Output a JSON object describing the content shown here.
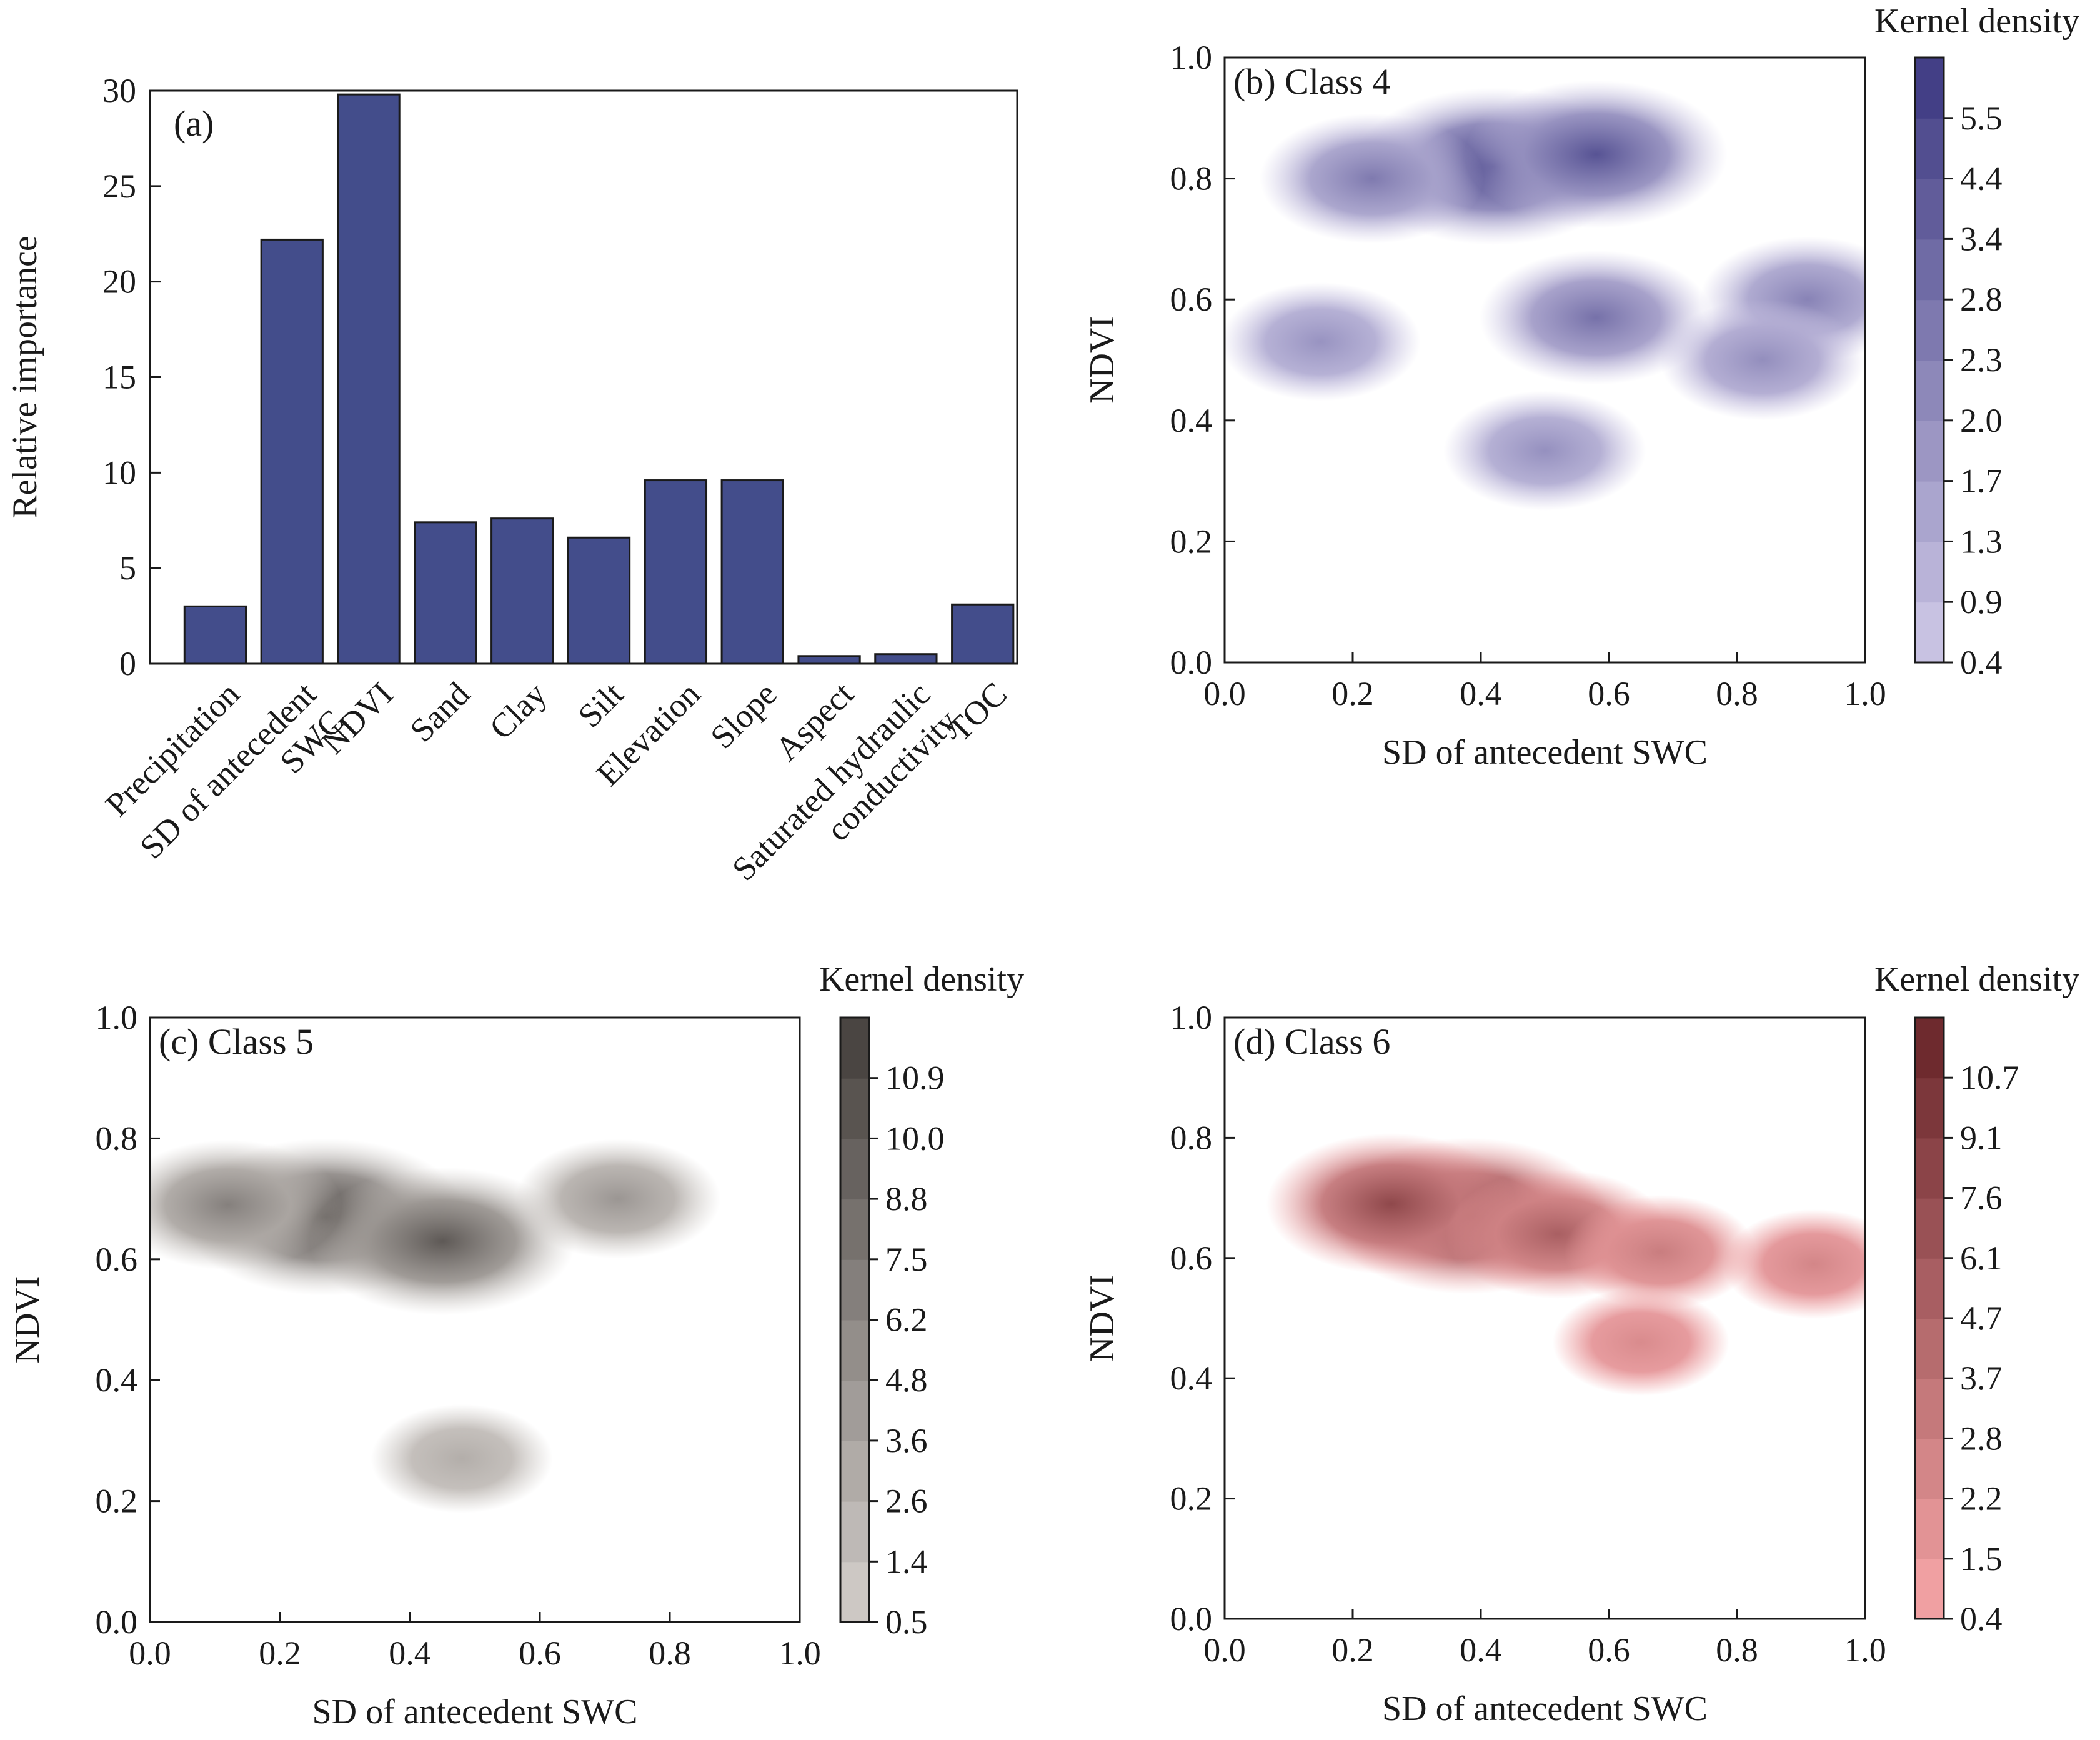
{
  "chart_data": [
    {
      "type": "bar",
      "label": "(a)",
      "ylabel": "Relative importance",
      "ylim": [
        0,
        30
      ],
      "yticks": [
        "0",
        "5",
        "10",
        "15",
        "20",
        "25",
        "30"
      ],
      "categories": [
        "Precipitation",
        "SD of antecedent SWC",
        "NDVI",
        "Sand",
        "Clay",
        "Silt",
        "Elevation",
        "Slope",
        "Aspect",
        "Saturated hydraulic conductivity",
        "TOC"
      ],
      "category_lines": [
        [
          "Precipitation"
        ],
        [
          "SD of antecedent",
          "SWC"
        ],
        [
          "NDVI"
        ],
        [
          "Sand"
        ],
        [
          "Clay"
        ],
        [
          "Silt"
        ],
        [
          "Elevation"
        ],
        [
          "Slope"
        ],
        [
          "Aspect"
        ],
        [
          "Saturated hydraulic",
          "conductivity"
        ],
        [
          "TOC"
        ]
      ],
      "values": [
        3.0,
        22.2,
        29.8,
        7.4,
        7.6,
        6.6,
        9.6,
        9.6,
        0.4,
        0.5,
        3.1
      ],
      "bar_color": "#434d8b"
    },
    {
      "type": "heatmap",
      "label": "(b) Class 4",
      "xlabel": "SD of antecedent SWC",
      "ylabel": "NDVI",
      "xlim": [
        0,
        1
      ],
      "ylim": [
        0,
        1
      ],
      "xticks": [
        "0.0",
        "0.2",
        "0.4",
        "0.6",
        "0.8",
        "1.0"
      ],
      "yticks": [
        "0.0",
        "0.2",
        "0.4",
        "0.6",
        "0.8",
        "1.0"
      ],
      "colorbar_title": "Kernel density",
      "colorbar_ticks": [
        "0.4",
        "0.9",
        "1.3",
        "1.7",
        "2.0",
        "2.3",
        "2.8",
        "3.4",
        "4.4",
        "5.5"
      ],
      "color_low": "#c8c2e2",
      "color_high": "#433f86",
      "density_peaks": [
        {
          "x": 0.42,
          "y": 0.82,
          "weight": 1.0
        },
        {
          "x": 0.58,
          "y": 0.84,
          "weight": 0.85
        },
        {
          "x": 0.23,
          "y": 0.8,
          "weight": 0.55
        },
        {
          "x": 0.58,
          "y": 0.57,
          "weight": 0.62
        },
        {
          "x": 0.91,
          "y": 0.6,
          "weight": 0.48
        },
        {
          "x": 0.84,
          "y": 0.5,
          "weight": 0.4
        },
        {
          "x": 0.15,
          "y": 0.53,
          "weight": 0.36
        },
        {
          "x": 0.5,
          "y": 0.35,
          "weight": 0.38
        }
      ]
    },
    {
      "type": "heatmap",
      "label": "(c) Class 5",
      "xlabel": "SD of antecedent SWC",
      "ylabel": "NDVI",
      "xlim": [
        0,
        1
      ],
      "ylim": [
        0,
        1
      ],
      "xticks": [
        "0.0",
        "0.2",
        "0.4",
        "0.6",
        "0.8",
        "1.0"
      ],
      "yticks": [
        "0.0",
        "0.2",
        "0.4",
        "0.6",
        "0.8",
        "1.0"
      ],
      "colorbar_title": "Kernel density",
      "colorbar_ticks": [
        "0.5",
        "1.4",
        "2.6",
        "3.6",
        "4.8",
        "6.2",
        "7.5",
        "8.8",
        "10.0",
        "10.9"
      ],
      "color_low": "#cdc8c4",
      "color_high": "#4a4542",
      "density_peaks": [
        {
          "x": 0.27,
          "y": 0.67,
          "weight": 1.0
        },
        {
          "x": 0.45,
          "y": 0.63,
          "weight": 0.85
        },
        {
          "x": 0.12,
          "y": 0.69,
          "weight": 0.55
        },
        {
          "x": 0.72,
          "y": 0.7,
          "weight": 0.38
        },
        {
          "x": 0.48,
          "y": 0.27,
          "weight": 0.2
        }
      ]
    },
    {
      "type": "heatmap",
      "label": "(d) Class 6",
      "xlabel": "SD of antecedent SWC",
      "ylabel": "NDVI",
      "xlim": [
        0,
        1
      ],
      "ylim": [
        0,
        1
      ],
      "xticks": [
        "0.0",
        "0.2",
        "0.4",
        "0.6",
        "0.8",
        "1.0"
      ],
      "yticks": [
        "0.0",
        "0.2",
        "0.4",
        "0.6",
        "0.8",
        "1.0"
      ],
      "colorbar_title": "Kernel density",
      "colorbar_ticks": [
        "0.4",
        "1.5",
        "2.2",
        "2.8",
        "3.7",
        "4.7",
        "6.1",
        "7.6",
        "9.1",
        "10.7"
      ],
      "color_low": "#f0a0a2",
      "color_high": "#6e2a2e",
      "density_peaks": [
        {
          "x": 0.38,
          "y": 0.67,
          "weight": 1.0
        },
        {
          "x": 0.26,
          "y": 0.69,
          "weight": 0.75
        },
        {
          "x": 0.52,
          "y": 0.64,
          "weight": 0.55
        },
        {
          "x": 0.68,
          "y": 0.61,
          "weight": 0.3
        },
        {
          "x": 0.92,
          "y": 0.59,
          "weight": 0.22
        },
        {
          "x": 0.65,
          "y": 0.46,
          "weight": 0.18
        }
      ]
    }
  ]
}
